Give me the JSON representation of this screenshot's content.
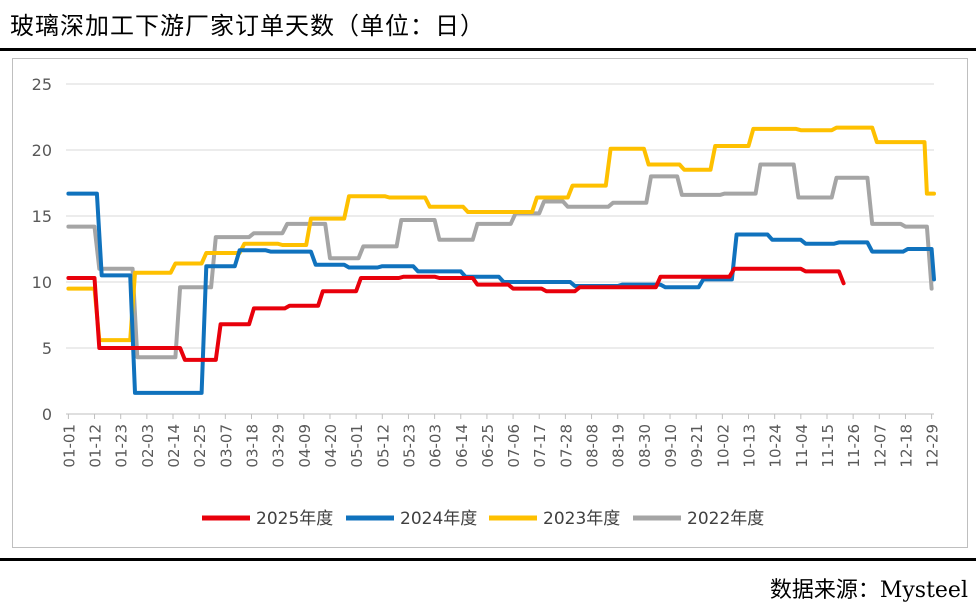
{
  "header": {
    "title": "玻璃深加工下游厂家订单天数（单位：日）"
  },
  "footer": {
    "source": "数据来源：Mysteel"
  },
  "colors": {
    "2025": "#e8000b",
    "2024": "#1072bd",
    "2023": "#fec000",
    "2022": "#a5a5a5",
    "grid": "#d9d9d9",
    "axis_text": "#595959"
  },
  "chart_data": {
    "type": "line",
    "title": "玻璃深加工下游厂家订单天数（单位：日）",
    "xlabel": "",
    "ylabel": "",
    "ylim": [
      0,
      25
    ],
    "yticks": [
      0,
      5,
      10,
      15,
      20,
      25
    ],
    "xlim": [
      0,
      365
    ],
    "x_unit": "day of year (1 = 01-01)",
    "categories": [
      "01-01",
      "01-12",
      "01-23",
      "02-03",
      "02-14",
      "02-25",
      "03-07",
      "03-18",
      "03-29",
      "04-09",
      "04-20",
      "05-01",
      "05-12",
      "05-23",
      "06-03",
      "06-14",
      "06-25",
      "07-06",
      "07-17",
      "07-28",
      "08-08",
      "08-19",
      "08-30",
      "09-10",
      "09-21",
      "10-02",
      "10-13",
      "10-24",
      "11-04",
      "11-15",
      "11-26",
      "12-07",
      "12-18",
      "12-29"
    ],
    "grid": "horizontal",
    "legend_position": "bottom",
    "series": [
      {
        "name": "2025年度",
        "color": "#e8000b",
        "points": [
          [
            1,
            10.3
          ],
          [
            12,
            10.3
          ],
          [
            14,
            5.0
          ],
          [
            48,
            5.0
          ],
          [
            50,
            4.1
          ],
          [
            63,
            4.1
          ],
          [
            65,
            6.8
          ],
          [
            77,
            6.8
          ],
          [
            79,
            8.0
          ],
          [
            92,
            8.0
          ],
          [
            94,
            8.2
          ],
          [
            106,
            8.2
          ],
          [
            108,
            9.3
          ],
          [
            122,
            9.3
          ],
          [
            124,
            10.3
          ],
          [
            140,
            10.3
          ],
          [
            142,
            10.4
          ],
          [
            155,
            10.4
          ],
          [
            157,
            10.3
          ],
          [
            171,
            10.3
          ],
          [
            173,
            9.8
          ],
          [
            186,
            9.8
          ],
          [
            188,
            9.5
          ],
          [
            200,
            9.5
          ],
          [
            202,
            9.3
          ],
          [
            214,
            9.3
          ],
          [
            216,
            9.6
          ],
          [
            248,
            9.6
          ],
          [
            250,
            10.4
          ],
          [
            279,
            10.4
          ],
          [
            281,
            11.0
          ],
          [
            309,
            11.0
          ],
          [
            311,
            10.8
          ],
          [
            325,
            10.8
          ],
          [
            327,
            9.9
          ]
        ]
      },
      {
        "name": "2024年度",
        "color": "#1072bd",
        "points": [
          [
            1,
            16.7
          ],
          [
            13,
            16.7
          ],
          [
            15,
            10.5
          ],
          [
            27,
            10.5
          ],
          [
            29,
            1.6
          ],
          [
            57,
            1.6
          ],
          [
            59,
            11.2
          ],
          [
            71,
            11.2
          ],
          [
            73,
            12.4
          ],
          [
            84,
            12.4
          ],
          [
            86,
            12.3
          ],
          [
            103,
            12.3
          ],
          [
            105,
            11.3
          ],
          [
            117,
            11.3
          ],
          [
            119,
            11.1
          ],
          [
            131,
            11.1
          ],
          [
            133,
            11.2
          ],
          [
            146,
            11.2
          ],
          [
            148,
            10.8
          ],
          [
            166,
            10.8
          ],
          [
            168,
            10.4
          ],
          [
            182,
            10.4
          ],
          [
            184,
            10.0
          ],
          [
            212,
            10.0
          ],
          [
            214,
            9.7
          ],
          [
            232,
            9.7
          ],
          [
            234,
            9.8
          ],
          [
            250,
            9.8
          ],
          [
            252,
            9.6
          ],
          [
            266,
            9.6
          ],
          [
            268,
            10.2
          ],
          [
            280,
            10.2
          ],
          [
            282,
            13.6
          ],
          [
            295,
            13.6
          ],
          [
            297,
            13.2
          ],
          [
            309,
            13.2
          ],
          [
            311,
            12.9
          ],
          [
            323,
            12.9
          ],
          [
            325,
            13.0
          ],
          [
            337,
            13.0
          ],
          [
            339,
            12.3
          ],
          [
            352,
            12.3
          ],
          [
            354,
            12.5
          ],
          [
            364,
            12.5
          ],
          [
            365,
            10.2
          ]
        ]
      },
      {
        "name": "2023年度",
        "color": "#fec000",
        "points": [
          [
            1,
            9.5
          ],
          [
            12,
            9.5
          ],
          [
            14,
            5.6
          ],
          [
            27,
            5.6
          ],
          [
            29,
            10.7
          ],
          [
            44,
            10.7
          ],
          [
            46,
            11.4
          ],
          [
            57,
            11.4
          ],
          [
            59,
            12.2
          ],
          [
            73,
            12.2
          ],
          [
            75,
            12.9
          ],
          [
            89,
            12.9
          ],
          [
            91,
            12.8
          ],
          [
            101,
            12.8
          ],
          [
            103,
            14.8
          ],
          [
            117,
            14.8
          ],
          [
            119,
            16.5
          ],
          [
            134,
            16.5
          ],
          [
            136,
            16.4
          ],
          [
            151,
            16.4
          ],
          [
            153,
            15.7
          ],
          [
            167,
            15.7
          ],
          [
            169,
            15.3
          ],
          [
            196,
            15.3
          ],
          [
            198,
            16.4
          ],
          [
            211,
            16.4
          ],
          [
            213,
            17.3
          ],
          [
            227,
            17.3
          ],
          [
            229,
            20.1
          ],
          [
            243,
            20.1
          ],
          [
            245,
            18.9
          ],
          [
            258,
            18.9
          ],
          [
            260,
            18.5
          ],
          [
            271,
            18.5
          ],
          [
            273,
            20.3
          ],
          [
            287,
            20.3
          ],
          [
            289,
            21.6
          ],
          [
            307,
            21.6
          ],
          [
            309,
            21.5
          ],
          [
            322,
            21.5
          ],
          [
            324,
            21.7
          ],
          [
            339,
            21.7
          ],
          [
            341,
            20.6
          ],
          [
            361,
            20.6
          ],
          [
            362,
            16.7
          ],
          [
            365,
            16.7
          ]
        ]
      },
      {
        "name": "2022年度",
        "color": "#a5a5a5",
        "points": [
          [
            1,
            14.2
          ],
          [
            12,
            14.2
          ],
          [
            14,
            11.0
          ],
          [
            28,
            11.0
          ],
          [
            30,
            4.3
          ],
          [
            46,
            4.3
          ],
          [
            48,
            9.6
          ],
          [
            61,
            9.6
          ],
          [
            63,
            13.4
          ],
          [
            77,
            13.4
          ],
          [
            79,
            13.7
          ],
          [
            91,
            13.7
          ],
          [
            93,
            14.4
          ],
          [
            109,
            14.4
          ],
          [
            111,
            11.8
          ],
          [
            123,
            11.8
          ],
          [
            125,
            12.7
          ],
          [
            139,
            12.7
          ],
          [
            141,
            14.7
          ],
          [
            155,
            14.7
          ],
          [
            157,
            13.2
          ],
          [
            171,
            13.2
          ],
          [
            173,
            14.4
          ],
          [
            187,
            14.4
          ],
          [
            189,
            15.2
          ],
          [
            199,
            15.2
          ],
          [
            201,
            16.1
          ],
          [
            209,
            16.1
          ],
          [
            211,
            15.7
          ],
          [
            228,
            15.7
          ],
          [
            230,
            16.0
          ],
          [
            244,
            16.0
          ],
          [
            246,
            18.0
          ],
          [
            257,
            18.0
          ],
          [
            259,
            16.6
          ],
          [
            275,
            16.6
          ],
          [
            277,
            16.7
          ],
          [
            290,
            16.7
          ],
          [
            292,
            18.9
          ],
          [
            306,
            18.9
          ],
          [
            308,
            16.4
          ],
          [
            322,
            16.4
          ],
          [
            324,
            17.9
          ],
          [
            337,
            17.9
          ],
          [
            339,
            14.4
          ],
          [
            351,
            14.4
          ],
          [
            353,
            14.2
          ],
          [
            362,
            14.2
          ],
          [
            364,
            9.5
          ]
        ]
      }
    ]
  }
}
